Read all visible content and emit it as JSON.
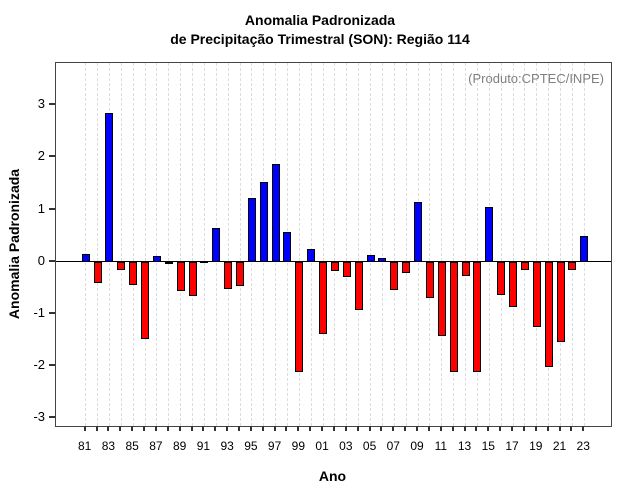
{
  "title": {
    "line1": "Anomalia Padronizada",
    "line2": "de Precipitação Trimestral (SON): Região 114"
  },
  "annotation": "(Produto:CPTEC/INPE)",
  "axes": {
    "x_label": "Ano",
    "y_label": "Anomalia Padronizada",
    "y_ticks": [
      3,
      2,
      1,
      0,
      -1,
      -2,
      -3
    ],
    "x_tick_labels": [
      "81",
      "83",
      "85",
      "87",
      "89",
      "91",
      "93",
      "95",
      "97",
      "99",
      "01",
      "03",
      "05",
      "07",
      "09",
      "11",
      "13",
      "15",
      "17",
      "19",
      "21",
      "23"
    ]
  },
  "colors": {
    "positive_bar": "#0000ff",
    "negative_bar": "#ff0000",
    "bar_border": "#000000",
    "grid": "#dcdcdc",
    "annotation_text": "#808080",
    "axis": "#333333"
  },
  "chart_data": {
    "type": "bar",
    "title": "Anomalia Padronizada de Precipitação Trimestral (SON): Região 114",
    "xlabel": "Ano",
    "ylabel": "Anomalia Padronizada",
    "x": [
      1981,
      1982,
      1983,
      1984,
      1985,
      1986,
      1987,
      1988,
      1989,
      1990,
      1991,
      1992,
      1993,
      1994,
      1995,
      1996,
      1997,
      1998,
      1999,
      2000,
      2001,
      2002,
      2003,
      2004,
      2005,
      2006,
      2007,
      2008,
      2009,
      2010,
      2011,
      2012,
      2013,
      2014,
      2015,
      2016,
      2017,
      2018,
      2019,
      2020,
      2021,
      2022,
      2023
    ],
    "values": [
      0.14,
      -0.4,
      2.85,
      -0.15,
      -0.45,
      -1.48,
      0.1,
      -0.05,
      -0.57,
      -0.66,
      0.02,
      0.65,
      -0.52,
      -0.46,
      1.22,
      1.53,
      1.87,
      0.56,
      -2.12,
      0.24,
      -1.38,
      -0.17,
      -0.29,
      -0.92,
      0.13,
      0.08,
      -0.55,
      -0.21,
      1.15,
      -0.7,
      -1.42,
      -2.12,
      -0.27,
      -2.12,
      1.05,
      -0.63,
      -0.86,
      -0.16,
      -1.26,
      -2.02,
      -1.54,
      -0.16,
      0.49
    ],
    "ylim": [
      -3.15,
      3.81
    ],
    "y_ticks": [
      -3,
      -2,
      -1,
      0,
      1,
      2,
      3
    ],
    "x_tick_every": 2,
    "grid": "vertical-dashed",
    "legend": "none",
    "positive_color": "blue",
    "negative_color": "red"
  }
}
